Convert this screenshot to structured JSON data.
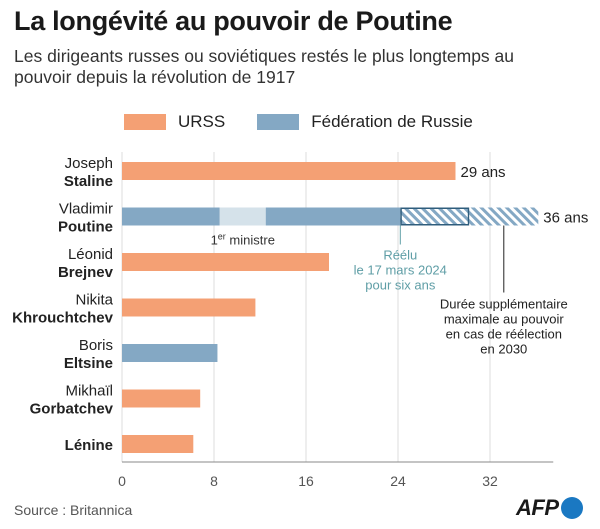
{
  "title": "La longévité au pouvoir de Poutine",
  "subtitle": "Les dirigeants russes ou soviétiques restés le plus longtemps au pouvoir depuis la révolution de 1917",
  "source": "Source : Britannica",
  "logo_text": "AFP",
  "colors": {
    "urss": "#f4a074",
    "russie": "#84a8c4",
    "premier_ministre": "#d5e2ea",
    "hatch": "#84a8c4",
    "annotation": "#5f9ea6",
    "logo_dot": "#1a78c2"
  },
  "chart_data": {
    "type": "bar",
    "orientation": "horizontal",
    "legend": [
      {
        "key": "urss",
        "label": "URSS"
      },
      {
        "key": "russie",
        "label": "Fédération de Russie"
      }
    ],
    "categories": [
      {
        "first": "Joseph",
        "last": "Staline"
      },
      {
        "first": "Vladimir",
        "last": "Poutine"
      },
      {
        "first": "Léonid",
        "last": "Brejnev"
      },
      {
        "first": "Nikita",
        "last": "Khrouchtchev"
      },
      {
        "first": "Boris",
        "last": "Eltsine"
      },
      {
        "first": "Mikhaïl",
        "last": "Gorbatchev"
      },
      {
        "first": "",
        "last": "Lénine"
      }
    ],
    "bars": [
      {
        "leader": "Staline",
        "segments": [
          {
            "start": 0,
            "end": 29,
            "kind": "urss"
          }
        ],
        "value_label": "29 ans"
      },
      {
        "leader": "Poutine",
        "segments": [
          {
            "start": 0,
            "end": 8.5,
            "kind": "russie"
          },
          {
            "start": 8.5,
            "end": 12.5,
            "kind": "premier_ministre"
          },
          {
            "start": 12.5,
            "end": 24.2,
            "kind": "russie"
          },
          {
            "start": 24.2,
            "end": 30.2,
            "kind": "hatch_framed"
          },
          {
            "start": 30.2,
            "end": 36.2,
            "kind": "hatch"
          }
        ],
        "value_label": "36 ans"
      },
      {
        "leader": "Brejnev",
        "segments": [
          {
            "start": 0,
            "end": 18,
            "kind": "urss"
          }
        ]
      },
      {
        "leader": "Khrouchtchev",
        "segments": [
          {
            "start": 0,
            "end": 11.6,
            "kind": "urss"
          }
        ]
      },
      {
        "leader": "Eltsine",
        "segments": [
          {
            "start": 0,
            "end": 8.3,
            "kind": "russie"
          }
        ]
      },
      {
        "leader": "Gorbatchev",
        "segments": [
          {
            "start": 0,
            "end": 6.8,
            "kind": "urss"
          }
        ]
      },
      {
        "leader": "Lénine",
        "segments": [
          {
            "start": 0,
            "end": 6.2,
            "kind": "urss"
          }
        ]
      }
    ],
    "annotations": {
      "premier_ministre": {
        "base": "1",
        "sup": "er",
        "rest": " ministre",
        "at": 10.5
      },
      "reelu": {
        "lines": [
          "Réélu",
          "le 17 mars 2024",
          "pour six ans"
        ],
        "at": 24.2
      },
      "duree": {
        "lines": [
          "Durée supplémentaire",
          "maximale au pouvoir",
          "en cas de réélection",
          "en 2030"
        ],
        "at": 33.2
      }
    },
    "xlim": [
      0,
      37.5
    ],
    "xticks": [
      0,
      8,
      16,
      24,
      32
    ],
    "xlabel": "",
    "ylabel": "",
    "grid": true
  }
}
